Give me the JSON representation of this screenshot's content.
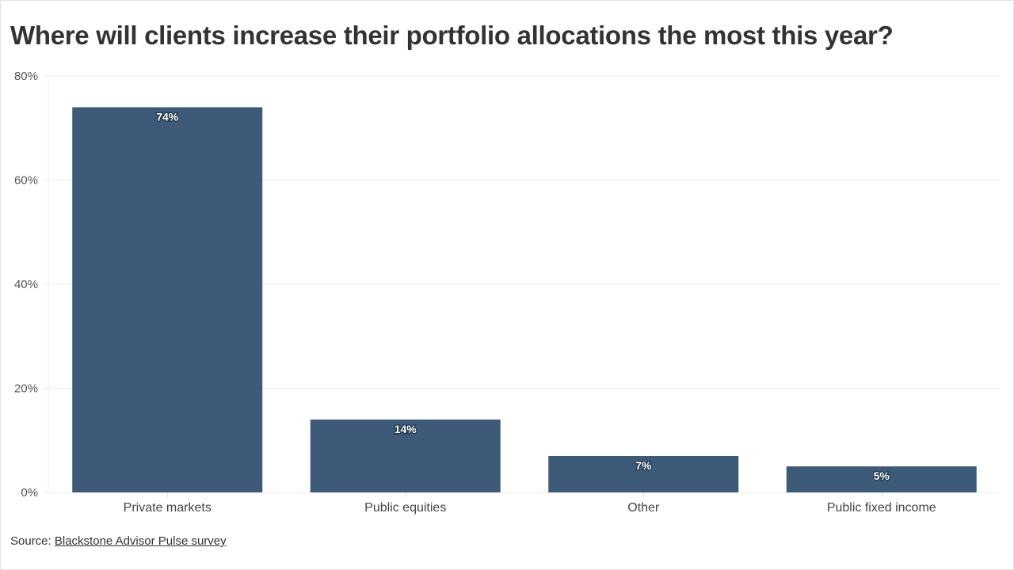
{
  "chart_data": {
    "type": "bar",
    "title": "Where will clients increase their portfolio allocations the most this year?",
    "categories": [
      "Private markets",
      "Public equities",
      "Other",
      "Public fixed income"
    ],
    "values": [
      74,
      14,
      7,
      5
    ],
    "data_labels": [
      "74%",
      "14%",
      "7%",
      "5%"
    ],
    "xlabel": "",
    "ylabel": "",
    "ylim": [
      0,
      80
    ],
    "yticks": [
      0,
      20,
      40,
      60,
      80
    ],
    "ytick_labels": [
      "0%",
      "20%",
      "40%",
      "60%",
      "80%"
    ],
    "grid": true,
    "bar_color": "#3d5a78"
  },
  "source": {
    "prefix": "Source: ",
    "link_text": "Blackstone Advisor Pulse survey"
  }
}
